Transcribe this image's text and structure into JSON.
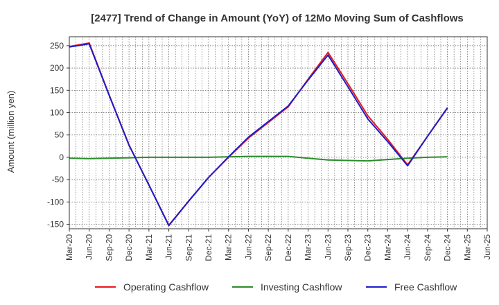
{
  "chart_data": {
    "type": "line",
    "title": "[2477]  Trend of Change in Amount (YoY) of 12Mo Moving Sum of Cashflows",
    "xlabel": "",
    "ylabel": "Amount (million yen)",
    "ylim": [
      -160,
      270
    ],
    "yticks": [
      250,
      200,
      150,
      100,
      50,
      0,
      -50,
      -100,
      -150
    ],
    "categories": [
      "Mar-20",
      "Jun-20",
      "Sep-20",
      "Dec-20",
      "Mar-21",
      "Jun-21",
      "Sep-21",
      "Dec-21",
      "Mar-22",
      "Jun-22",
      "Sep-22",
      "Dec-22",
      "Mar-23",
      "Jun-23",
      "Sep-23",
      "Dec-23",
      "Mar-24",
      "Jun-24",
      "Sep-24",
      "Dec-24",
      "Mar-25",
      "Jun-25"
    ],
    "grid": true,
    "legend_position": "bottom",
    "series": [
      {
        "name": "Operating Cashflow",
        "color": "#e8171c",
        "values": [
          248,
          256,
          140,
          28,
          -62,
          -152,
          -98,
          -45,
          0,
          43,
          78,
          113,
          175,
          235,
          165,
          93,
          40,
          -17,
          47,
          110,
          null,
          null
        ]
      },
      {
        "name": "Investing Cashflow",
        "color": "#2a8c2a",
        "values": [
          -2,
          -3,
          -2,
          -1,
          0,
          0,
          0,
          0,
          1,
          2,
          2,
          2,
          -2,
          -6,
          -7,
          -8,
          -5,
          -2,
          0,
          1,
          null,
          null
        ]
      },
      {
        "name": "Free Cashflow",
        "color": "#1c1ccc",
        "values": [
          247,
          254,
          139,
          27,
          -62,
          -153,
          -98,
          -45,
          1,
          45,
          80,
          115,
          173,
          229,
          158,
          86,
          35,
          -19,
          47,
          111,
          null,
          null
        ]
      }
    ]
  }
}
